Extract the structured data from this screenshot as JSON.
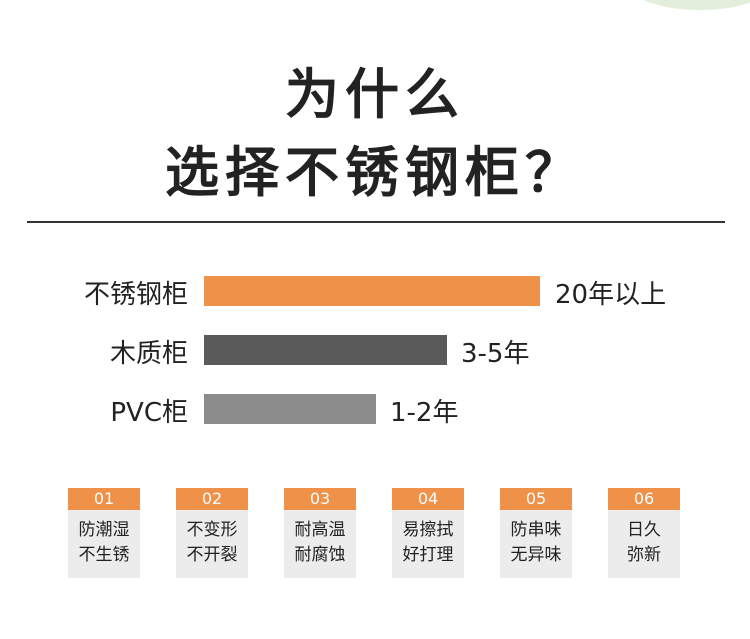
{
  "header": {
    "title_line1": "为什么",
    "title_line2": "选择不锈钢柜？"
  },
  "comparison": [
    {
      "label": "不锈钢柜",
      "value": "20年以上"
    },
    {
      "label": "木质柜",
      "value": "3-5年"
    },
    {
      "label": "PVC柜",
      "value": "1-2年"
    }
  ],
  "features": [
    {
      "number": "01",
      "line1": "防潮湿",
      "line2": "不生锈"
    },
    {
      "number": "02",
      "line1": "不变形",
      "line2": "不开裂"
    },
    {
      "number": "03",
      "line1": "耐高温",
      "line2": "耐腐蚀"
    },
    {
      "number": "04",
      "line1": "易擦拭",
      "line2": "好打理"
    },
    {
      "number": "05",
      "line1": "防串味",
      "line2": "无异味"
    },
    {
      "number": "06",
      "line1": "日久",
      "line2": "弥新"
    }
  ]
}
